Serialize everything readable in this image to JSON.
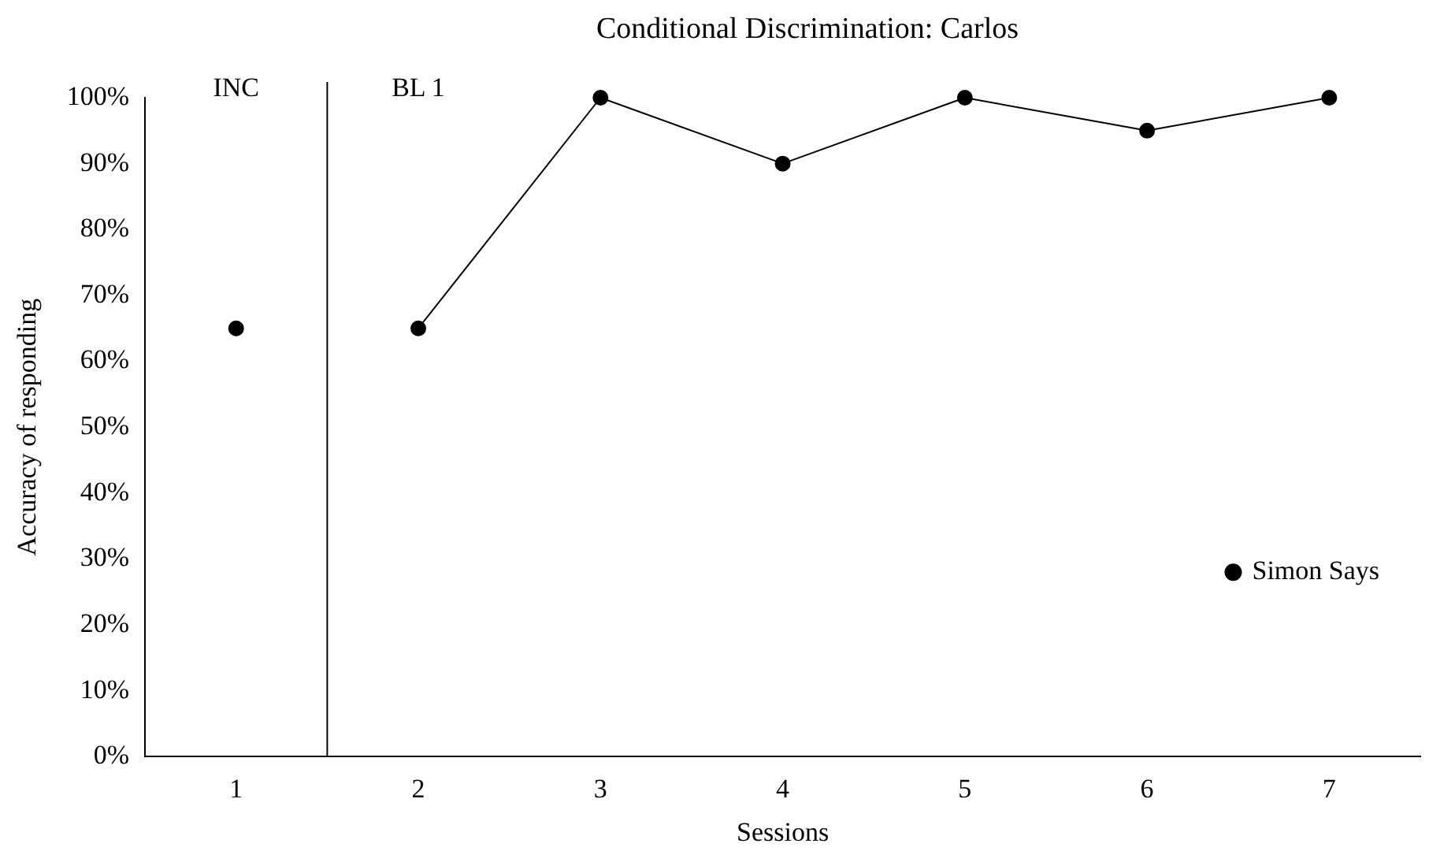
{
  "chart_data": {
    "type": "line",
    "title": "Conditional Discrimination: Carlos",
    "xlabel": "Sessions",
    "ylabel": "Accuracy of responding",
    "series": [
      {
        "color": "#000000",
        "x": [
          1
        ],
        "values": [
          65
        ]
      },
      {
        "name": "Simon Says",
        "color": "#000000",
        "x": [
          2,
          3,
          4,
          5,
          6,
          7
        ],
        "values": [
          65,
          100,
          90,
          100,
          95,
          100
        ]
      }
    ],
    "xlim": [
      0.5,
      7.5
    ],
    "xticks": [
      1,
      2,
      3,
      4,
      5,
      6,
      7
    ],
    "ylim": [
      0,
      100
    ],
    "yticks": [
      {
        "value": 0,
        "label": "0%"
      },
      {
        "value": 10,
        "label": "10%"
      },
      {
        "value": 20,
        "label": "20%"
      },
      {
        "value": 30,
        "label": "30%"
      },
      {
        "value": 40,
        "label": "40%"
      },
      {
        "value": 50,
        "label": "50%"
      },
      {
        "value": 60,
        "label": "60%"
      },
      {
        "value": 70,
        "label": "70%"
      },
      {
        "value": 80,
        "label": "80%"
      },
      {
        "value": 90,
        "label": "90%"
      },
      {
        "value": 100,
        "label": "100%"
      }
    ],
    "ref_lines": [
      {
        "axis": "x",
        "value": 1.5,
        "color": "#000000"
      }
    ],
    "annotations": [
      "INC",
      "BL 1"
    ],
    "grid": false,
    "legend": "right",
    "marker": "circle",
    "line_style": "solid"
  }
}
